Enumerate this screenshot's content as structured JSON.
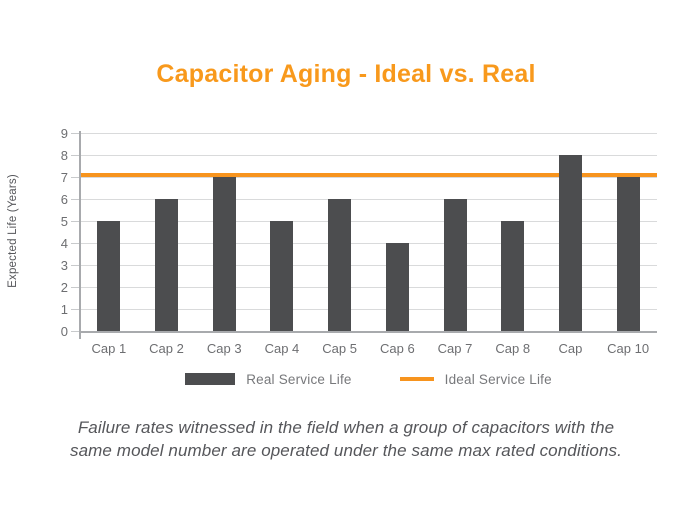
{
  "title": "Capacitor Aging - Ideal vs. Real",
  "chart_data": {
    "type": "bar",
    "title": "Capacitor Aging - Ideal vs. Real",
    "categories": [
      "Cap 1",
      "Cap 2",
      "Cap 3",
      "Cap 4",
      "Cap 5",
      "Cap 6",
      "Cap 7",
      "Cap 8",
      "Cap",
      "Cap 10"
    ],
    "series": [
      {
        "name": "Real Service Life",
        "type": "bar",
        "values": [
          5,
          6,
          7,
          5,
          6,
          4,
          6,
          5,
          8,
          7
        ]
      },
      {
        "name": "Ideal Service Life",
        "type": "line",
        "constant_value": 7
      }
    ],
    "xlabel": "",
    "ylabel": "Expected Life (Years)",
    "yticks": [
      0,
      1,
      2,
      3,
      4,
      5,
      6,
      7,
      8,
      9
    ],
    "ylim": [
      0,
      9
    ],
    "grid": true,
    "legend_position": "bottom"
  },
  "legend": {
    "items": [
      {
        "label": "Real Service Life",
        "swatch": "rect"
      },
      {
        "label": "Ideal Service Life",
        "swatch": "line"
      }
    ]
  },
  "caption": {
    "line1": "Failure rates witnessed in the field when a group of capacitors with the",
    "line2": "same model number are operated under the same max rated conditions."
  },
  "colors": {
    "accent_orange": "#F7941E",
    "title_orange": "#F8991C",
    "bar_gray": "#4C4D4F",
    "gridline_gray": "#D9DADB",
    "axis_gray": "#A8AAAD",
    "tick_mark_gray": "#C8CACC",
    "tick_text_gray": "#6D6E71",
    "legend_text_gray": "#77787B",
    "caption_text_gray": "#55565A"
  }
}
